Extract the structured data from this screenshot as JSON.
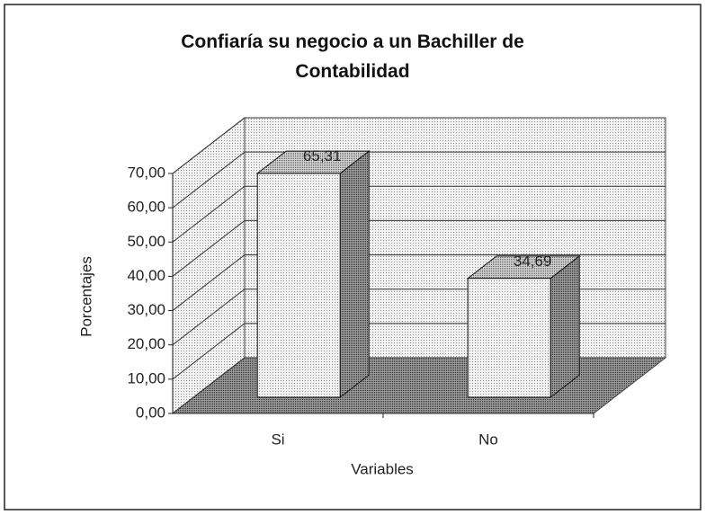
{
  "chart_data": {
    "type": "bar3d",
    "title": "Confiaría su negocio a un Bachiller de Contabilidad",
    "x_label": "Variables",
    "y_label": "Porcentajes",
    "categories": [
      "Si",
      "No"
    ],
    "values": [
      65.31,
      34.69
    ],
    "value_labels": [
      "65,31",
      "34,69"
    ],
    "ylim": [
      0,
      70
    ],
    "yticks": [
      {
        "value": 0,
        "label": "0,00"
      },
      {
        "value": 10,
        "label": "10,00"
      },
      {
        "value": 20,
        "label": "20,00"
      },
      {
        "value": 30,
        "label": "30,00"
      },
      {
        "value": 40,
        "label": "40,00"
      },
      {
        "value": 50,
        "label": "50,00"
      },
      {
        "value": 60,
        "label": "60,00"
      },
      {
        "value": 70,
        "label": "70,00"
      }
    ],
    "grid": true
  }
}
